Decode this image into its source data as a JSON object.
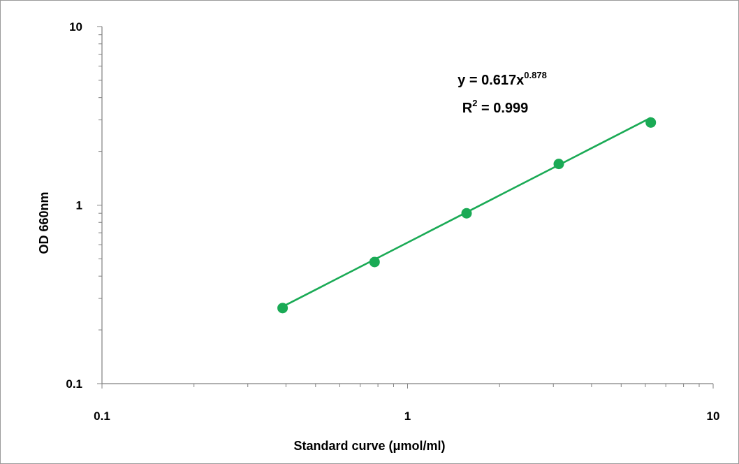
{
  "colors": {
    "series": "#1aaa55",
    "axis": "#808080",
    "text": "#000000"
  },
  "chart_data": {
    "type": "scatter",
    "xscale": "log",
    "yscale": "log",
    "xlim": [
      0.1,
      10
    ],
    "ylim": [
      0.1,
      10
    ],
    "xlabel": "Standard curve  (μmol/ml)",
    "ylabel": "OD 660nm",
    "x_ticks": [
      "0.1",
      "1",
      "10"
    ],
    "y_ticks": [
      "0.1",
      "1",
      "10"
    ],
    "grid": false,
    "legend": "none",
    "series": [
      {
        "x": [
          0.39,
          0.78,
          1.56,
          3.125,
          6.25
        ],
        "y": [
          0.265,
          0.48,
          0.9,
          1.7,
          2.9
        ],
        "marker": "circle",
        "trendline": {
          "type": "power",
          "a": 0.617,
          "b": 0.878
        }
      }
    ],
    "annotations": {
      "equation_prefix": "y = 0.617x",
      "equation_exponent": "0.878",
      "r2_prefix": "R",
      "r2_exponent": "2",
      "r2_suffix": " = 0.999"
    }
  }
}
